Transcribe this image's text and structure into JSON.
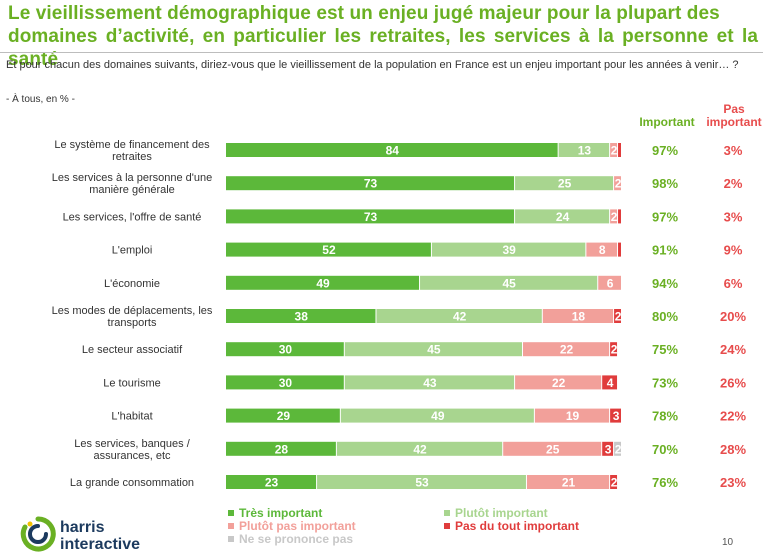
{
  "title": {
    "line1": "Le vieillissement démographique est un enjeu jugé majeur pour la plupart des",
    "line2": "domaines d’activité, en particulier les retraites, les services à la personne et la santé"
  },
  "question": "Et pour chacun des domaines suivants, diriez-vous que le vieillissement de la population en France est un enjeu important pour les années à venir… ?",
  "base": "- À tous, en % -",
  "col_important": "Important",
  "col_pas_important": "Pas important",
  "page_number": "10",
  "logo": {
    "line1": "harris",
    "line2": "interactive"
  },
  "colors": {
    "tres_important": "#5cb83a",
    "plutot_important": "#a8d58f",
    "plutot_pas_important": "#f2a09a",
    "pas_du_tout_important": "#e03c3c",
    "ne_se_prononce_pas": "#c8c8c8",
    "important_text": "#6ab023",
    "pas_important_text": "#e74c4c"
  },
  "chart_data": {
    "type": "bar",
    "orientation": "horizontal",
    "stacked": true,
    "categories": [
      "Le système de financement des retraites",
      "Les services à la personne d'une manière générale",
      "Les services, l'offre de santé",
      "L'emploi",
      "L'économie",
      "Les modes de déplacements, les transports",
      "Le secteur associatif",
      "Le tourisme",
      "L'habitat",
      "Les services, banques / assurances, etc",
      "La grande consommation"
    ],
    "series": [
      {
        "name": "Très important",
        "values": [
          84,
          73,
          73,
          52,
          49,
          38,
          30,
          30,
          29,
          28,
          23
        ]
      },
      {
        "name": "Plutôt important",
        "values": [
          13,
          25,
          24,
          39,
          45,
          42,
          45,
          43,
          49,
          42,
          53
        ]
      },
      {
        "name": "Plutôt pas important",
        "values": [
          2,
          2,
          2,
          8,
          6,
          18,
          22,
          22,
          19,
          25,
          21
        ]
      },
      {
        "name": "Pas du tout important",
        "values": [
          1,
          0,
          1,
          1,
          0,
          2,
          2,
          4,
          3,
          3,
          2
        ]
      },
      {
        "name": "Ne se prononce pas",
        "values": [
          0,
          0,
          0,
          0,
          0,
          0,
          0,
          0,
          0,
          2,
          0
        ]
      }
    ],
    "bar_labels": [
      [
        "84",
        "13",
        "2",
        "",
        ""
      ],
      [
        "73",
        "25",
        "2",
        "",
        ""
      ],
      [
        "73",
        "24",
        "2",
        "",
        ""
      ],
      [
        "52",
        "39",
        "8",
        "",
        ""
      ],
      [
        "49",
        "45",
        "6",
        "",
        ""
      ],
      [
        "38",
        "42",
        "18",
        "2",
        ""
      ],
      [
        "30",
        "45",
        "22",
        "2",
        ""
      ],
      [
        "30",
        "43",
        "22",
        "4",
        ""
      ],
      [
        "29",
        "49",
        "19",
        "3",
        ""
      ],
      [
        "28",
        "42",
        "25",
        "3",
        "2"
      ],
      [
        "23",
        "53",
        "21",
        "2",
        ""
      ]
    ],
    "important_totals": [
      "97%",
      "98%",
      "97%",
      "91%",
      "94%",
      "80%",
      "75%",
      "73%",
      "78%",
      "70%",
      "76%"
    ],
    "pas_important_totals": [
      "3%",
      "2%",
      "3%",
      "9%",
      "6%",
      "20%",
      "24%",
      "26%",
      "22%",
      "28%",
      "23%"
    ],
    "xlim": [
      0,
      100
    ],
    "legend_position": "bottom"
  }
}
